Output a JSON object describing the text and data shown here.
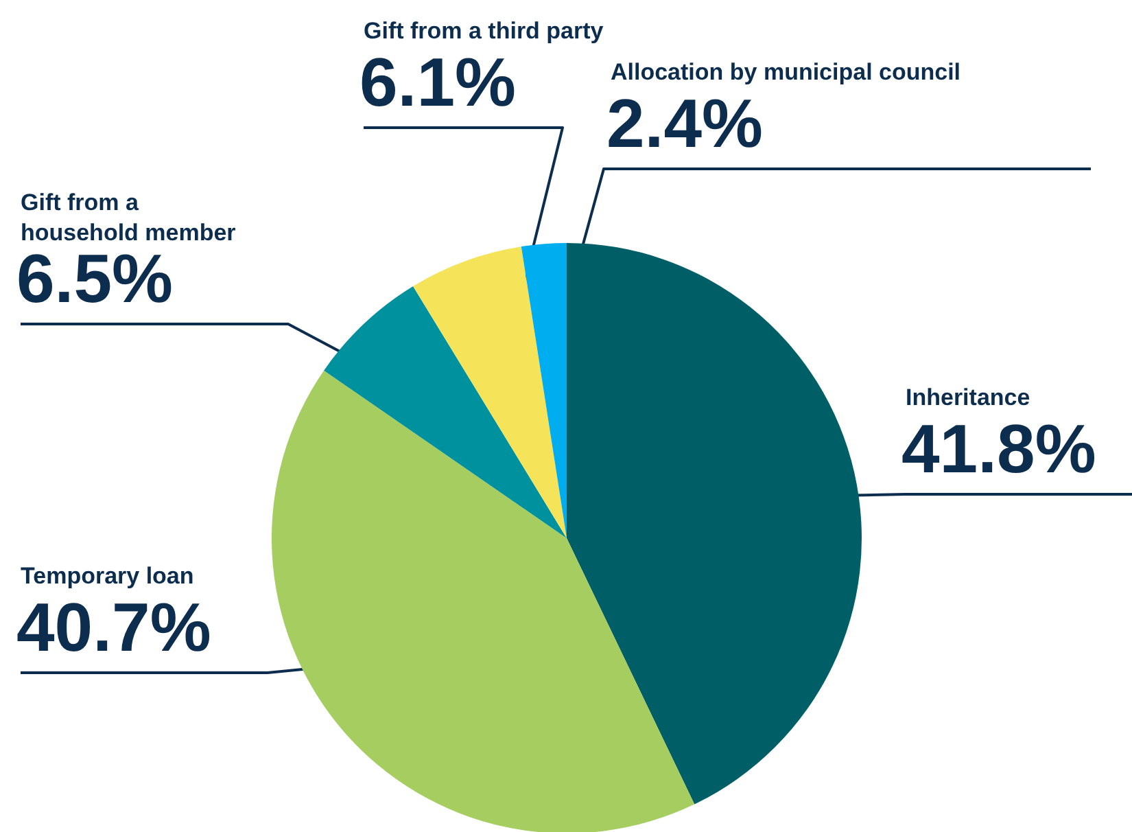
{
  "chart_data": {
    "type": "pie",
    "categories": [
      "Inheritance",
      "Temporary loan",
      "Gift from a household member",
      "Gift from a third party",
      "Allocation by municipal council"
    ],
    "values": [
      41.8,
      40.7,
      6.5,
      6.1,
      2.4
    ],
    "value_labels": [
      "41.8%",
      "40.7%",
      "6.5%",
      "6.1%",
      "2.4%"
    ],
    "colors": [
      "#005f66",
      "#a5cd5f",
      "#00919f",
      "#f5e45a",
      "#00aeef"
    ]
  }
}
